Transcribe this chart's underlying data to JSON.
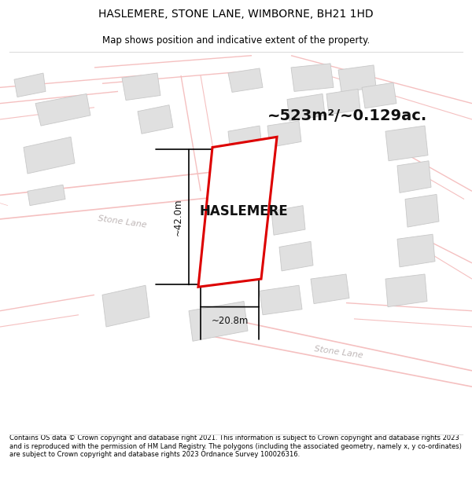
{
  "title": "HASLEMERE, STONE LANE, WIMBORNE, BH21 1HD",
  "subtitle": "Map shows position and indicative extent of the property.",
  "area_label": "~523m²/~0.129ac.",
  "property_name": "HASLEMERE",
  "dim_width": "~20.8m",
  "dim_height": "~42.0m",
  "footer": "Contains OS data © Crown copyright and database right 2021. This information is subject to Crown copyright and database rights 2023 and is reproduced with the permission of HM Land Registry. The polygons (including the associated geometry, namely x, y co-ordinates) are subject to Crown copyright and database rights 2023 Ordnance Survey 100026316.",
  "bg_color": "#ffffff",
  "map_bg": "#ffffff",
  "road_color": "#f5c0c0",
  "road_lw": 1.0,
  "building_fill": "#e0e0e0",
  "building_edge": "#c8c8c8",
  "property_edge": "#dd0000",
  "property_lw": 2.2,
  "road_label_color": "#c0b8b8",
  "dim_color": "#111111"
}
